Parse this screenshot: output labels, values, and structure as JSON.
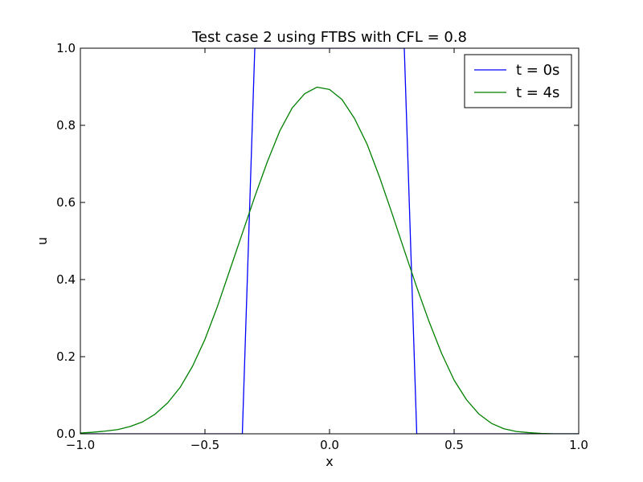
{
  "chart_data": {
    "type": "line",
    "title": "Test case 2 using FTBS with CFL = 0.8",
    "xlabel": "x",
    "ylabel": "u",
    "xlim": [
      -1.0,
      1.0
    ],
    "ylim": [
      0.0,
      1.0
    ],
    "xticks": [
      -1.0,
      -0.5,
      0.0,
      0.5,
      1.0
    ],
    "xtick_labels": [
      "−1.0",
      "−0.5",
      "0.0",
      "0.5",
      "1.0"
    ],
    "yticks": [
      0.0,
      0.2,
      0.4,
      0.6,
      0.8,
      1.0
    ],
    "ytick_labels": [
      "0.0",
      "0.2",
      "0.4",
      "0.6",
      "0.8",
      "1.0"
    ],
    "grid": false,
    "legend_position": "top-right",
    "series": [
      {
        "name": "t = 0s",
        "color": "#0000ff",
        "x": [
          -1.0,
          -0.35,
          -0.3,
          0.3,
          0.35,
          1.0
        ],
        "y": [
          0.0,
          0.0,
          1.0,
          1.0,
          0.0,
          0.0
        ]
      },
      {
        "name": "t = 4s",
        "color": "#008000",
        "x": [
          -1.0,
          -0.95,
          -0.9,
          -0.85,
          -0.8,
          -0.75,
          -0.7,
          -0.65,
          -0.6,
          -0.55,
          -0.5,
          -0.45,
          -0.4,
          -0.35,
          -0.3,
          -0.25,
          -0.2,
          -0.15,
          -0.1,
          -0.05,
          0.0,
          0.05,
          0.1,
          0.15,
          0.2,
          0.25,
          0.3,
          0.35,
          0.4,
          0.45,
          0.5,
          0.55,
          0.6,
          0.65,
          0.7,
          0.75,
          0.8,
          0.85,
          0.9,
          0.95,
          1.0
        ],
        "y": [
          0.002,
          0.004,
          0.007,
          0.011,
          0.019,
          0.031,
          0.051,
          0.08,
          0.12,
          0.175,
          0.245,
          0.33,
          0.425,
          0.52,
          0.615,
          0.705,
          0.785,
          0.845,
          0.882,
          0.899,
          0.893,
          0.867,
          0.818,
          0.752,
          0.667,
          0.573,
          0.476,
          0.38,
          0.29,
          0.208,
          0.139,
          0.088,
          0.051,
          0.027,
          0.013,
          0.006,
          0.003,
          0.001,
          0.0,
          0.0,
          0.0
        ]
      }
    ]
  }
}
